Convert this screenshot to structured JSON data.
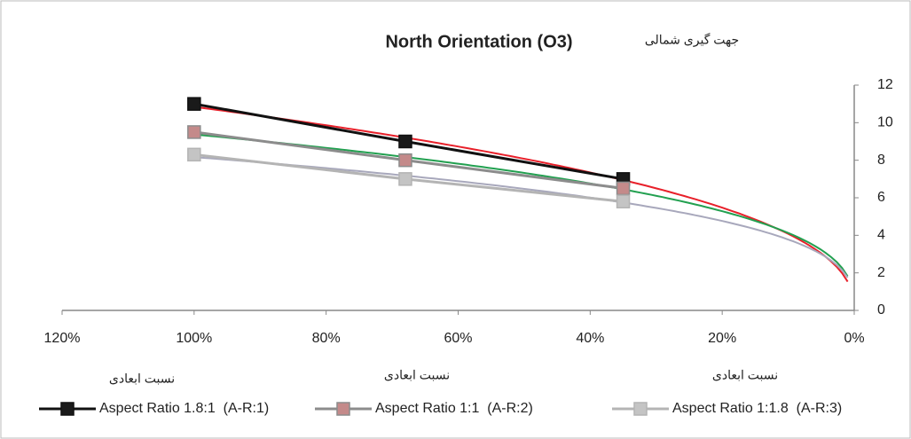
{
  "chart_data": {
    "type": "line",
    "title": "North Orientation (O3)",
    "subtitle": "جهت گیری شمالی",
    "x": [
      100,
      68,
      35
    ],
    "xlim": [
      0,
      120
    ],
    "x_reversed": true,
    "xticks": [
      {
        "value": 120,
        "label": "120%"
      },
      {
        "value": 100,
        "label": "100%"
      },
      {
        "value": 80,
        "label": "80%"
      },
      {
        "value": 60,
        "label": "60%"
      },
      {
        "value": 40,
        "label": "40%"
      },
      {
        "value": 20,
        "label": "20%"
      },
      {
        "value": 0,
        "label": "0%"
      }
    ],
    "ylim": [
      0,
      12
    ],
    "yticks": [
      0,
      2,
      4,
      6,
      8,
      10,
      12
    ],
    "y_axis_side": "right",
    "trendline": "power",
    "annotations": [
      "نسبت ابعادی",
      "نسبت ابعادی",
      "نسبت ابعادی"
    ],
    "legend": "bottom",
    "series": [
      {
        "name": "Aspect Ratio 1.8:1  (A-R:1)",
        "color": "#111111",
        "marker_color": "#1a1a1a",
        "trend_color": "#e8202a",
        "values": [
          11,
          9,
          7
        ]
      },
      {
        "name": "Aspect Ratio 1:1  (A-R:2)",
        "color": "#8c8c8c",
        "marker_color": "#c48a8a",
        "trend_color": "#22a050",
        "values": [
          9.5,
          8,
          6.5
        ]
      },
      {
        "name": "Aspect Ratio 1:1.8  (A-R:3)",
        "color": "#b4b4b4",
        "marker_color": "#c4c4c4",
        "trend_color": "#a8a8bc",
        "values": [
          8.3,
          7,
          5.8
        ]
      }
    ]
  }
}
